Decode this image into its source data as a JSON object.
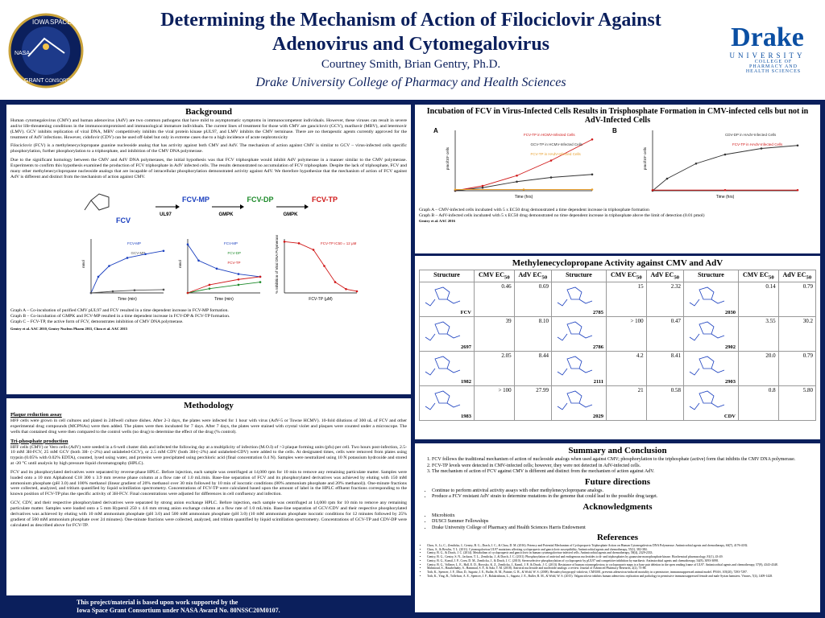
{
  "header": {
    "title_line1": "Determining the Mechanism of Action of Filociclovir Against",
    "title_line2": "Adenovirus and Cytomegalovirus",
    "authors": "Courtney Smith, Brian Gentry, Ph.D.",
    "affiliation": "Drake University College of Pharmacy and Health Sciences",
    "left_logo": [
      "IOWA",
      "SPACE",
      "NASA",
      "GRANT",
      "CONSORTIUM"
    ],
    "right_logo": {
      "name": "Drake",
      "sub": "UNIVERSITY",
      "college": "COLLEGE OF PHARMACY AND HEALTH SCIENCES"
    }
  },
  "background": {
    "title": "Background",
    "paragraphs": [
      "Human cytomegalovirus (CMV) and human adenovirus (AdV) are two common pathogens that have mild to asymptomatic symptoms in immunocompetent individuals. However, these viruses can result in severe and/or life-threatening conditions in the immunocompromised and immunological immature individuals. The current lines of treatment for those with CMV are ganciclovir (GCV), maribavir (MBV), and letermovir (LMV). GCV inhibits replication of viral DNA, MBV competitively inhibits the viral protein kinase pUL97, and LMV inhibits the CMV terminase. There are no therapeutic agents currently approved for the treatment of AdV infections. However, cidofovir (CDV) can be used off-label but only in extreme cases due to a high incidence of acute nephrotoxicity",
      "Filociclovir (FCV) is a methylenecyclopropane guanine nucleoside analog that has activity against both CMV and AdV. The mechanism of action against CMV is similar to GCV – virus-infected cells specific phosphorylation, further phosphorylation to a triphosphate, and inhibition of the CMV DNA polymerase.",
      "Due to the significant homology between the CMV and AdV DNA polymerases, the initial hypothesis was that FCV triphosphate would inhibit AdV polymerase in a manner similar to the CMV polymerase. Experiments to confirm this hypothesis examined the production of FCV triphosphate in AdV infected cells. The results demonstrated no accumulation of FCV triphosphate. Despite the lack of triphosphate, FCV and many other methylenecyclopropane nucleoside analogs that are incapable of intracellular phosphorylation demonstrated activity against AdV. We therefore hypothesize that the mechanism of action of FCV against AdV is different and distinct from the mechanism of action against CMV."
    ],
    "pathway": {
      "compounds": [
        "FCV",
        "FCV-MP",
        "FCV-DP",
        "FCV-TP"
      ],
      "enzymes": [
        "UL97",
        "GMPK",
        "GMPK"
      ]
    },
    "graph_labels": {
      "a": {
        "y": "nmol",
        "x": "Time (min)",
        "series": [
          "FCV-MP",
          "GCV-MP"
        ]
      },
      "b": {
        "y": "nmol",
        "x": "Time (min)",
        "series": [
          "FCV-MP",
          "FCV-DP",
          "FCV-TP"
        ]
      },
      "c": {
        "y": "% Inhibition of Viral DNA Polymerase",
        "x": "FCV-TP (µM)",
        "series": [
          "FCV-TP IC50 = 12 µM"
        ]
      }
    },
    "captions": [
      "Graph A – Co-incubation of purified CMV pUL97 and FCV resulted in a time dependent increase in FCV-MP formation.",
      "Graph B – Co-incubation of GMPK and FCV-MP resulted in a time dependent increase in FCV-DP & FCV-TP formation.",
      "Graph C – FCV-TP, the active form of FCV, demonstrates inhibition of CMV DNA polymerase."
    ],
    "citation": "Gentry et al. AAC 2010, Gentry Nucleos Pharm 2011, Chou et al. AAC 2015"
  },
  "methodology": {
    "title": "Methodology",
    "sections": [
      {
        "heading": "Plaque reduction assay",
        "paragraphs": [
          "HFF cells were grown in cell cultures and plated in 240well culture dishes. After 2-3 days, the plates were infected for 1 hour with virus (AdV-5 or Towne HCMV). 10-fold dilutions of 300 uL of FCV and other experimental drug compounds (MCPNAs) were then added. The plates were then incubated for 7 days. After 7 days, the plates were stained with crystal violet and plaques were counted under a microscope. The wells that contained drug were then compared to the control wells (no drug) to determine the effect of the drug (% control)."
        ]
      },
      {
        "heading": "Tri-phosphate production",
        "paragraphs": [
          "HFF cells (CMV) or Vero cells (AdV) were seeded in a 6-well cluster dish and infected the following day at a multiplicity of infection (M.O.I) of >3 plaque forming units (pfu) per cell. Two hours post-infection, 2.5-10 mM 3H-FCV, 25 mM GCV (both 3H- (~2%) and unlabeled-GCV), or 2.5 mM CDV (both 3H-(~2%) and unlabeled-CDV) were added to the cells. At designated times, cells were removed from plates using trypsin (0.05% with 0.02% EDTA), counted, lysed using water, and proteins were precipitated using perchloric acid (final concentration 0.4 N). Samples were neutralized using 10 N potassium hydroxide and stored at -20 °C until analysis by high pressure liquid chromatography (HPLC).",
          "FCV and its phosphorylated derivatives were separated by reverse-phase HPLC. Before injection, each sample was centrifuged at 14,000 rpm for 10 min to remove any remaining particulate matter. Samples were loaded onto a 10 mm Alphabond C18 300 x 3.9 mm reverse phase column at a flow rate of 1.0 mL/min. Base-line separation of FCV and its phosphorylated derivatives was achieved by eluting with 150 mM ammonium phosphate (pH 3.0) and 100% methanol (linear gradient of 20% methanol over 30 min followed by 10 min of isocratic conditions (80% ammonium phosphate and 20% methanol)). One-minute fractions were collected, analyzed, and tritium quantified by liquid scintillation spectrometry. Concentrations of FCV-TP were calculated based upon the amount of label in the HPLC effluent fractions corresponding to the known position of FCV-TP plus the specific activity of 3H-FCV. Final concentrations were adjusted for differences in cell confluency and infection.",
          "GCV, CDV, and their respective phosphorylated derivatives were separated by strong anion exchange HPLC. Before injection, each sample was centrifuged at 14,000 rpm for 10 min to remove any remaining particulate matter. Samples were loaded onto a 5 mm Hypersil 250 x 4.6 mm strong anion exchange column at a flow rate of 1.0 mL/min. Base-line separation of GCV/CDV and their respective phosphorylated derivatives was achieved by eluting with 10 mM ammonium phosphate (pH 3.0) and 500 mM ammonium phosphate (pH 3.0) (10 mM ammonium phosphate isocratic conditions for 12 minutes followed by 25% gradient of 500 mM ammonium phosphate over 24 minutes). One-minute fractions were collected, analyzed, and tritium quantified by liquid scintillation spectrometry. Concentrations of GCV-TP and CDV-DP were calculated as described above for FCV-TP."
        ]
      }
    ]
  },
  "incubation": {
    "title": "Incubation of FCV in Virus-Infected Cells Results in Trisphosphate Formation in CMV-infected cells but not in AdV-Infected Cells",
    "panels": [
      "A",
      "B"
    ],
    "graph_a": {
      "y": "pmol/10⁶ cells",
      "x": "Time (hrs)",
      "series": [
        "FCV-TP in HCMV-Infected Cells",
        "GCV-TP in HCMV-Infected Cells",
        "FCV-TP in HAdV-Infected Cells"
      ]
    },
    "graph_b": {
      "y": "pmol/10⁶ cells",
      "x": "Time (hrs)",
      "series": [
        "CDV-DP in HAdV-Infected Cells",
        "FCV-TP in HAdV-Infected Cells"
      ]
    },
    "captions": [
      "Graph A – CMV-infected cells incubated with 5 x EC50 drug demonstrated a time dependent increase in triphosphate formation",
      "Graph B – AdV-infected cells incubated with 5 x EC50 drug demonstrated no time dependent increase in triphosphate above the limit of detection (0.01 pmol)"
    ],
    "citation": "Gentry et al. AAC 2016"
  },
  "activity": {
    "title": "Methylenecyclopropane Activity against CMV and AdV",
    "headers": [
      "Structure",
      {
        "main": "CMV EC",
        "sub": "50"
      },
      {
        "main": "AdV EC",
        "sub": "50"
      }
    ],
    "rows": [
      [
        [
          "FCV",
          "0.46",
          "0.69"
        ],
        [
          "2785",
          "15",
          "2.32"
        ],
        [
          "2030",
          "0.14",
          "0.79"
        ]
      ],
      [
        [
          "2697",
          "39",
          "8.10"
        ],
        [
          "2786",
          "> 100",
          "0.47"
        ],
        [
          "2902",
          "3.55",
          "30.2"
        ]
      ],
      [
        [
          "1982",
          "2.05",
          "8.44"
        ],
        [
          "2111",
          "4.2",
          "8.41"
        ],
        [
          "2903",
          "20.0",
          "0.79"
        ]
      ],
      [
        [
          "1983",
          "> 100",
          "27.99"
        ],
        [
          "2029",
          "21",
          "0.58"
        ],
        [
          "CDV",
          "0.8",
          "5.80"
        ]
      ]
    ]
  },
  "summary": {
    "title": "Summary and Conclusion",
    "items": [
      "FCV follows the traditional mechanism of action of nucleoside analogs when used against CMV; phosphorylation to the triphosphate (active) form that inhibits the CMV DNA polymerase.",
      "FCV-TP levels were detected in CMV-infected cells; however, they were not detected in AdV-infected cells.",
      "The mechanism of action of FCV against CMV is different and distinct from the mechanism of action against AdV."
    ]
  },
  "future": {
    "title": "Future directions",
    "items": [
      "Continue to perform antiviral activity assays with other methylenecyclopropane analogs.",
      "Produce a FCV resistant AdV strain to determine mutations in the genome that could lead to the possible drug target."
    ]
  },
  "acknowledgments": {
    "title": "Acknowledgments",
    "items": [
      "Microbiotix",
      "DUSCI Summer Fellowships",
      "Drake University College of Pharmacy and Health Sciences Harris Endowment"
    ]
  },
  "references": {
    "title": "References",
    "items": [
      "Chou, S., Li, C., Zemlicka, J., Gentry, B. G., Drach, J. C., & Chou, D. M. (2016). Potency and Potential Mechanism of Cyclopropavir Triphosphate Action on Human Cytomegalovirus DNA Polymerase. Antimicrobial agents and chemotherapy, 60(7), 4176-4182.",
      "Chou, S., & Bowlin, T. L. (2011). Cytomegalovirus UL97 mutations affecting cyclopropavir and ganciclovir susceptibility. Antimicrobial agents and chemotherapy, 55(1), 382-384.",
      "Gentry, B. G., & Drach, J. C. (2014). Metabolism of cyclopropavir and ganciclovir in human cytomegalovirus-infected cells. Antimicrobial agents and chemotherapy, 58(4), 2329-2333.",
      "Gentry, B. G., Gentry, S. N., Jackson, T. L., Zemlicka, J., & Drach, J. C. (2011). Phosphorylation of antiviral and endogenous nucleotides to di- and triphosphates by guanosine monophosphate kinase. Biochemical pharmacology, 81(1), 43-49.",
      "Gentry, B. G., Kamil, J. P., Coen, D. M., Zemlicka, J., & Drach, J. C. (2010). Stereoselective phosphorylation of cyclopropavir by pUL97 and competitive inhibition by maribavir. Antimicrobial agents and chemotherapy, 54(8), 3093-3098.",
      "Gentry, B. G., Vollmer, L. E., Hall, E. D., Borysko, K. Z., Zemlicka, J., Kamil, J. P., & Drach, J. C. (2013). Resistance of human cytomegalovirus to cyclopropavir maps to a base pair deletion in the open reading frame of UL97. Antimicrobial agents and chemotherapy, 57(9), 4343-4348.",
      "Mahmoud, S., Hasabelnaby, S., Hammad, S. F., & Sakr, T. M. (2018). Antiviral nucleoside and nucleotide analogs: a review. Journal of Advanced Pharmacy Research, 2(2), 73-88.",
      "Toth, K., Spencer, J. F., Dhar, D., Sagartz, J. E., Buller, R. M., Painter, G. R., & Wold, W. S. (2008). Hexadecyloxypropyl-cidofovir, CMX001, prevents adenovirus-induced mortality in a permissive, immunosuppressed animal model. PNAS, 105(20), 7293-7297.",
      "Toth, K., Ying, B., Tollefson, A. E., Spencer, J. F., Balakrishnan, L., Sagartz, J. E., Buller, R. M., & Wold, W. S. (2015). Valganciclovir inhibits human adenovirus replication and pathology in permissive immunosuppressed female and male Syrian hamsters. Viruses, 7(4), 1409-1428."
    ]
  },
  "footer": {
    "line1": "This project/material is based upon work supported by the",
    "line2": "Iowa Space Grant Consortium under NASA Award No. 80NSSC20M0107."
  }
}
